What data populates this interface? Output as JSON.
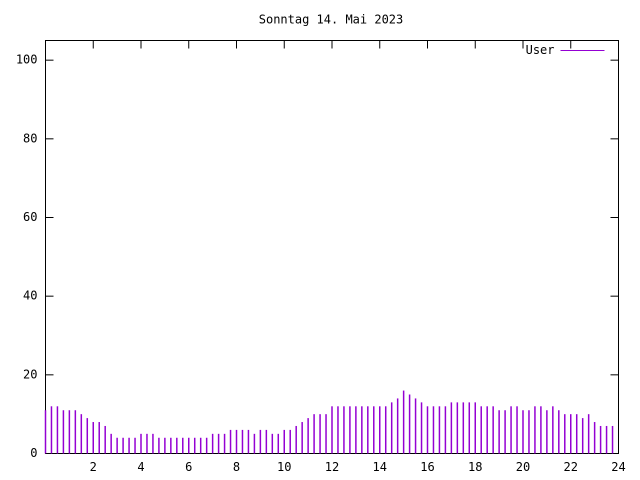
{
  "chart_data": {
    "type": "impulse",
    "title": "Sonntag 14. Mai 2023",
    "x": [
      0,
      0.25,
      0.5,
      0.75,
      1,
      1.25,
      1.5,
      1.75,
      2,
      2.25,
      2.5,
      2.75,
      3,
      3.25,
      3.5,
      3.75,
      4,
      4.25,
      4.5,
      4.75,
      5,
      5.25,
      5.5,
      5.75,
      6,
      6.25,
      6.5,
      6.75,
      7,
      7.25,
      7.5,
      7.75,
      8,
      8.25,
      8.5,
      8.75,
      9,
      9.25,
      9.5,
      9.75,
      10,
      10.25,
      10.5,
      10.75,
      11,
      11.25,
      11.5,
      11.75,
      12,
      12.25,
      12.5,
      12.75,
      13,
      13.25,
      13.5,
      13.75,
      14,
      14.25,
      14.5,
      14.75,
      15,
      15.25,
      15.5,
      15.75,
      16,
      16.25,
      16.5,
      16.75,
      17,
      17.25,
      17.5,
      17.75,
      18,
      18.25,
      18.5,
      18.75,
      19,
      19.25,
      19.5,
      19.75,
      20,
      20.25,
      20.5,
      20.75,
      21,
      21.25,
      21.5,
      21.75,
      22,
      22.25,
      22.5,
      22.75,
      23,
      23.25,
      23.5,
      23.75
    ],
    "series": [
      {
        "name": "User",
        "color": "#9400d3",
        "values": [
          11,
          12,
          12,
          11,
          11,
          11,
          10,
          9,
          8,
          8,
          7,
          5,
          4,
          4,
          4,
          4,
          5,
          5,
          5,
          4,
          4,
          4,
          4,
          4,
          4,
          4,
          4,
          4,
          5,
          5,
          5,
          6,
          6,
          6,
          6,
          5,
          6,
          6,
          5,
          5,
          6,
          6,
          7,
          8,
          9,
          10,
          10,
          10,
          12,
          12,
          12,
          12,
          12,
          12,
          12,
          12,
          12,
          12,
          13,
          14,
          16,
          15,
          14,
          13,
          12,
          12,
          12,
          12,
          13,
          13,
          13,
          13,
          13,
          12,
          12,
          12,
          11,
          11,
          12,
          12,
          11,
          11,
          12,
          12,
          11,
          12,
          11,
          10,
          10,
          10,
          9,
          10,
          8,
          7,
          7,
          7
        ]
      }
    ],
    "xlim": [
      0,
      24
    ],
    "xticks": [
      2,
      4,
      6,
      8,
      10,
      12,
      14,
      16,
      18,
      20,
      22,
      24
    ],
    "ylim": [
      0,
      105
    ],
    "yticks": [
      0,
      20,
      40,
      60,
      80,
      100
    ],
    "legend": "top-right"
  }
}
